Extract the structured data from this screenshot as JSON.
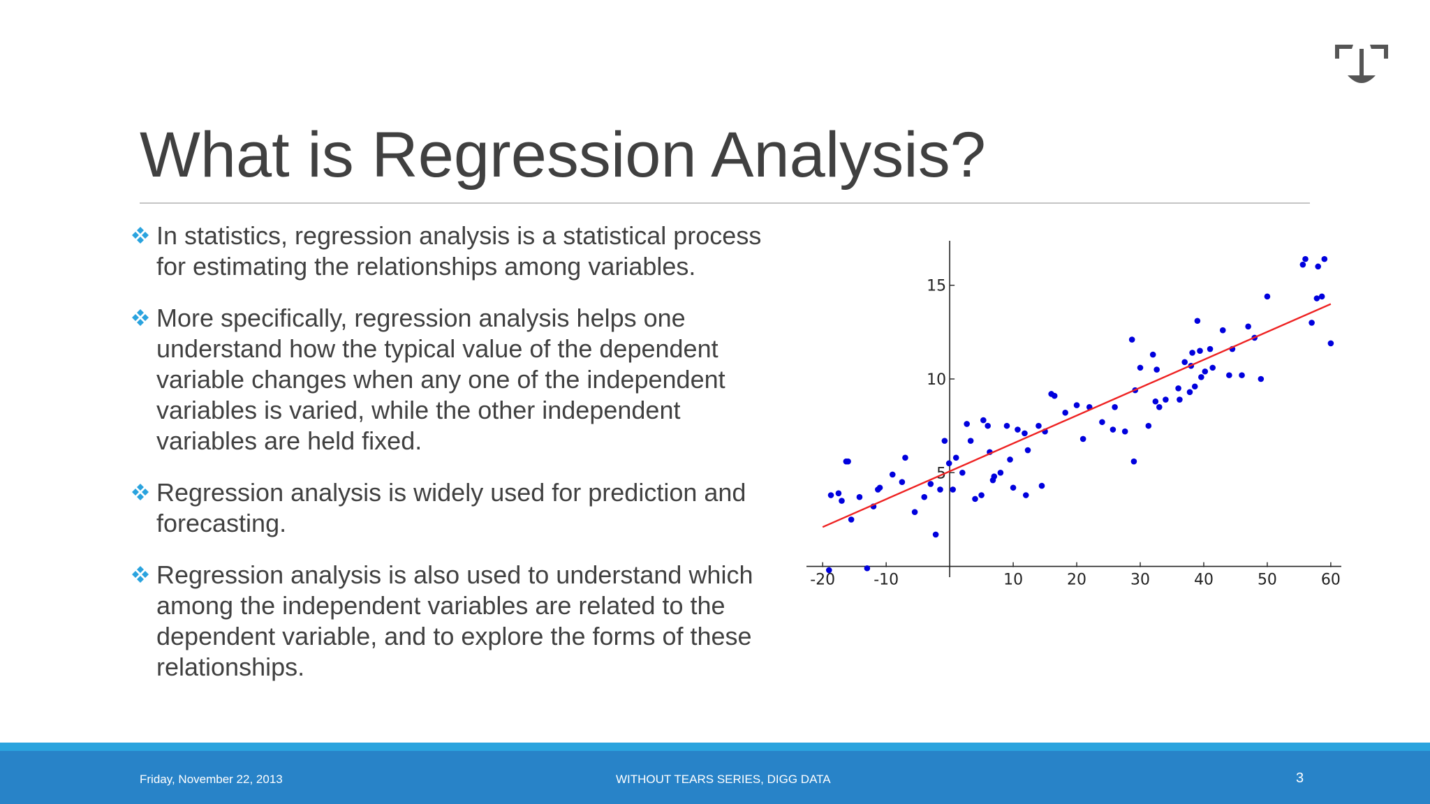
{
  "slide": {
    "title": "What is Regression Analysis?",
    "bullets": [
      "In statistics, regression analysis is a statistical process for estimating the relationships among variables.",
      "More specifically, regression analysis helps one understand how the typical value of the dependent variable changes when any one of the independent variables is varied, while the other independent variables are held fixed.",
      "Regression analysis is widely used for prediction and forecasting.",
      "Regression analysis is also used to understand which among the independent variables are related to the dependent variable, and to explore the forms of these relationships."
    ],
    "bullet_icon": "diamond-cluster-icon",
    "logo_icon": "scales-logo-icon"
  },
  "footer": {
    "date": "Friday, November 22, 2013",
    "series": "WITHOUT TEARS SERIES, DIGG DATA",
    "page": "3"
  },
  "colors": {
    "title": "#404040",
    "bullet_icon": "#2aa3de",
    "footer_bg": "#2883c8",
    "footer_stripe": "#2aa3de",
    "points": "#0000dd",
    "fit_line": "#ee2222"
  },
  "chart_data": {
    "type": "scatter",
    "title": "",
    "xlabel": "",
    "ylabel": "",
    "xlim": [
      -22,
      61
    ],
    "ylim": [
      -0.5,
      17
    ],
    "x_ticks": [
      -20,
      -10,
      10,
      20,
      30,
      40,
      50,
      60
    ],
    "y_ticks": [
      5,
      10,
      15
    ],
    "x_tick_labels": [
      "-20",
      "-10",
      "10",
      "20",
      "30",
      "40",
      "50",
      "60"
    ],
    "y_tick_labels": [
      "5",
      "10",
      "15"
    ],
    "grid": false,
    "series": [
      {
        "kind": "points",
        "x": [
          -19,
          -18.7,
          -17.5,
          -17,
          -16.3,
          -16,
          -15.5,
          -14.2,
          -13,
          -12,
          -11.3,
          -11,
          -9,
          -7.5,
          -7,
          -5.5,
          -4,
          -3,
          -2.2,
          -1.5,
          -0.8,
          -0.1,
          0.5,
          1,
          2,
          2.7,
          3.3,
          4,
          5,
          5.3,
          6,
          6.3,
          6.8,
          7,
          8,
          9,
          9.5,
          10,
          10.7,
          11.8,
          12,
          12.3,
          14,
          14.5,
          15,
          16,
          16.5,
          18.2,
          20,
          21,
          22,
          24,
          25.7,
          26,
          27.6,
          28.7,
          29,
          29.2,
          30,
          31.3,
          32,
          32.4,
          32.6,
          33,
          34,
          36,
          36.2,
          37,
          37.8,
          38,
          38.2,
          38.6,
          39,
          39.4,
          39.6,
          40.2,
          41,
          41.4,
          43,
          44,
          44.5,
          46,
          47,
          48,
          49,
          50,
          55.6,
          56,
          57,
          57.8,
          58,
          58.6,
          59,
          60
        ],
        "y": [
          -0.2,
          3.8,
          3.9,
          3.5,
          5.6,
          5.6,
          2.5,
          3.7,
          -0.1,
          3.2,
          4.1,
          4.2,
          4.9,
          4.5,
          5.8,
          2.9,
          3.7,
          4.4,
          1.7,
          4.1,
          6.7,
          5.5,
          4.1,
          5.8,
          5,
          7.6,
          6.7,
          3.6,
          3.8,
          7.8,
          7.5,
          6.1,
          4.6,
          4.8,
          5,
          7.5,
          5.7,
          4.2,
          7.3,
          7.1,
          3.8,
          6.2,
          7.5,
          4.3,
          7.2,
          9.2,
          9.1,
          8.2,
          8.6,
          6.8,
          8.5,
          7.7,
          7.3,
          8.5,
          7.2,
          12.1,
          5.6,
          9.4,
          10.6,
          7.5,
          11.3,
          8.8,
          10.5,
          8.5,
          8.9,
          9.5,
          8.9,
          10.9,
          9.3,
          10.7,
          11.4,
          9.6,
          13.1,
          11.5,
          10.1,
          10.4,
          11.6,
          10.6,
          12.6,
          10.2,
          11.6,
          10.2,
          12.8,
          12.2,
          10,
          14.4,
          16.1,
          16.4,
          13,
          14.3,
          16,
          14.4,
          16.4,
          11.9
        ]
      },
      {
        "kind": "line",
        "name": "",
        "x": [
          -20,
          60
        ],
        "y": [
          2.1,
          14.0
        ]
      }
    ]
  }
}
